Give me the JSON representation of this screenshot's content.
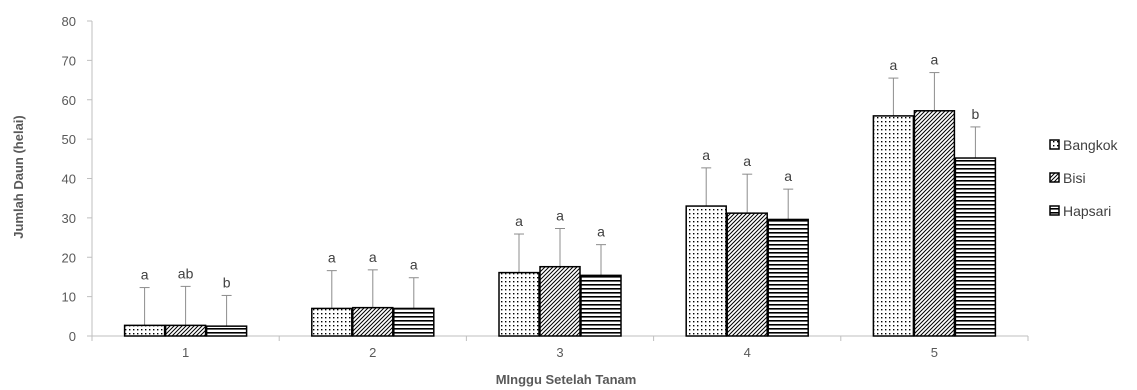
{
  "chart_data": {
    "type": "bar",
    "xlabel": "MInggu Setelah Tanam",
    "ylabel": "Jumlah Daun (helai)",
    "ylim": [
      0,
      80
    ],
    "yticks": [
      0,
      10,
      20,
      30,
      40,
      50,
      60,
      70,
      80
    ],
    "categories": [
      "1",
      "2",
      "3",
      "4",
      "5"
    ],
    "grid": false,
    "legend_position": "right",
    "series": [
      {
        "name": "Bangkok",
        "pattern": "dots",
        "values": [
          2.7,
          7.0,
          16.1,
          33.0,
          55.9
        ],
        "error_upper": [
          12.3,
          16.6,
          25.9,
          42.7,
          65.5
        ],
        "significance": [
          "a",
          "a",
          "a",
          "a",
          "a"
        ]
      },
      {
        "name": "Bisi",
        "pattern": "diagonal",
        "values": [
          2.7,
          7.2,
          17.6,
          31.2,
          57.2
        ],
        "error_upper": [
          12.6,
          16.8,
          27.3,
          41.1,
          66.9
        ],
        "significance": [
          "ab",
          "a",
          "a",
          "a",
          "a"
        ]
      },
      {
        "name": "Hapsari",
        "pattern": "horizontal",
        "values": [
          2.5,
          7.0,
          15.4,
          29.6,
          45.2
        ],
        "error_upper": [
          10.3,
          14.8,
          23.2,
          37.3,
          53.1
        ],
        "significance": [
          "b",
          "a",
          "a",
          "a",
          "b"
        ]
      }
    ]
  },
  "colors": {
    "bar_fill": "#ffffff",
    "bar_stroke": "#000000",
    "axis": "#bfbfbf",
    "error_bar": "#8c8c8c",
    "text": "#595959"
  }
}
